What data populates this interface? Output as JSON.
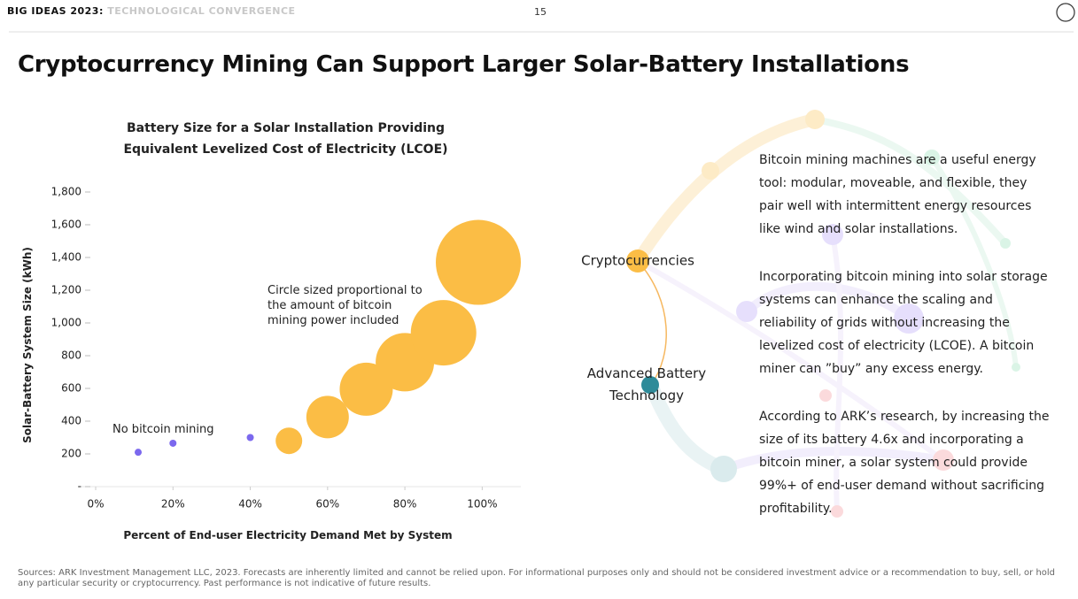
{
  "header": {
    "series": "BIG IDEAS 2023:",
    "theme": "TECHNOLOGICAL CONVERGENCE",
    "page": "15"
  },
  "title": "Cryptocurrency Mining Can Support Larger Solar-Battery Installations",
  "chart_data": {
    "type": "bubble",
    "title": "Battery Size for a Solar Installation Providing Equivalent Levelized Cost of Electricity (LCOE)",
    "x_label": "Percent of End-user Electricity Demand Met by System",
    "y_label": "Solar-Battery System Size (kWh)",
    "annotations": [
      "No bitcoin mining",
      "Circle sized proportional to the amount of bitcoin mining power included"
    ],
    "series": [
      {
        "color": "#7b68ee",
        "x": [
          11,
          20,
          40
        ],
        "values": [
          210,
          265,
          300
        ],
        "sizes": [
          16,
          16,
          16
        ]
      },
      {
        "color": "#fbbd45",
        "x": [
          50,
          60,
          70,
          80,
          90,
          99
        ],
        "values": [
          280,
          425,
          595,
          760,
          940,
          1370
        ],
        "sizes": [
          225,
          576,
          900,
          1089,
          1369,
          2304
        ]
      }
    ],
    "xlim": [
      0,
      110
    ],
    "ylim": [
      0,
      1800
    ],
    "xticks": [
      {
        "value": 0,
        "label": "0%"
      },
      {
        "value": 20,
        "label": "20%"
      },
      {
        "value": 40,
        "label": "40%"
      },
      {
        "value": 60,
        "label": "60%"
      },
      {
        "value": 80,
        "label": "80%"
      },
      {
        "value": 100,
        "label": "100%"
      }
    ],
    "yticks": [
      {
        "value": 0,
        "label": "-"
      },
      200,
      400,
      600,
      800,
      {
        "value": 1000,
        "label": "1,000"
      },
      {
        "value": 1200,
        "label": "1,200"
      },
      {
        "value": 1400,
        "label": "1,400"
      },
      {
        "value": 1600,
        "label": "1,600"
      },
      {
        "value": 1800,
        "label": "1,800"
      }
    ]
  },
  "diagram": {
    "labels": [
      "Cryptocurrencies",
      "Advanced Battery Technology"
    ]
  },
  "text": {
    "paragraphs": [
      "Bitcoin mining machines are a useful energy tool: modular, moveable, and flexible, they pair well with intermittent energy resources like wind and solar installations.",
      "Incorporating bitcoin mining into solar storage systems can enhance the scaling and reliability of grids without increasing the levelized cost of electricity (LCOE). A bitcoin miner can ”buy” any excess energy.",
      "According to ARK’s research, by increasing the size of its battery 4.6x and incorporating a bitcoin miner, a solar system could provide 99%+ of end-user demand without sacrificing profitability."
    ]
  },
  "footer": "Sources: ARK Investment Management LLC, 2023. Forecasts are inherently limited and cannot be relied upon. For informational purposes only and should not be considered investment advice or a recommendation to buy, sell, or hold any particular security or cryptocurrency. Past performance is not indicative of future results."
}
